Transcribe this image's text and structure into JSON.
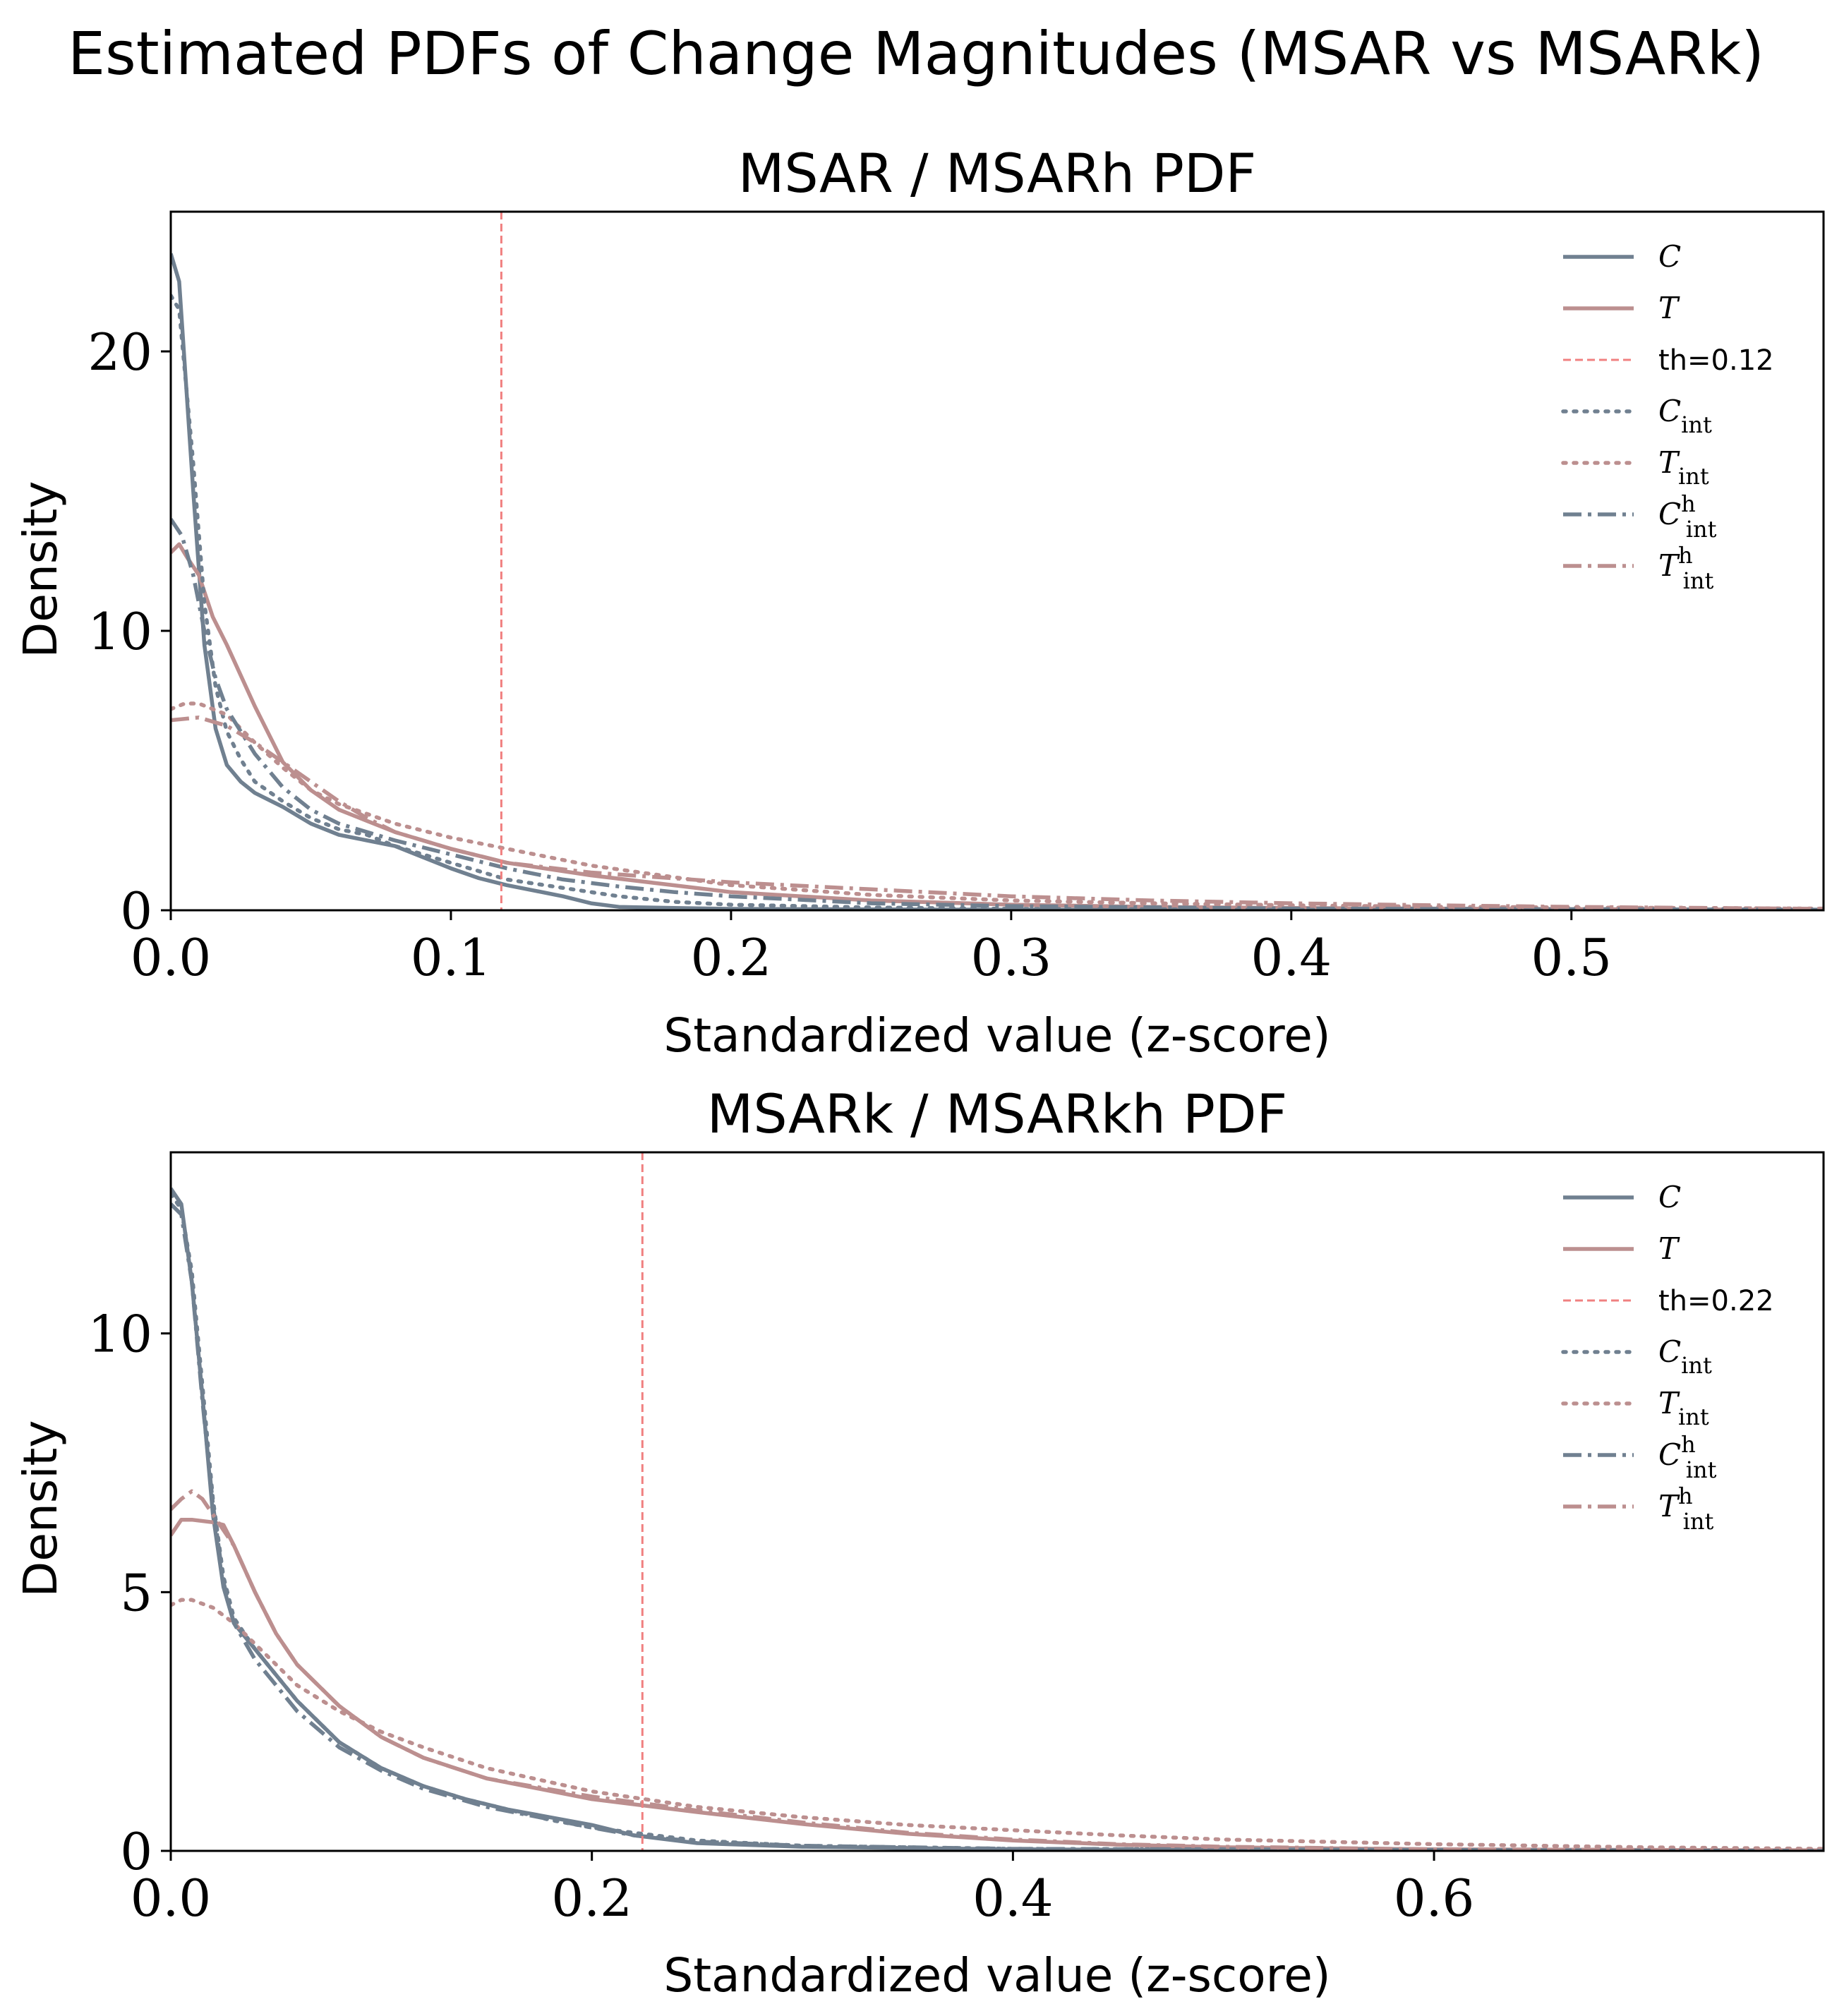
{
  "title": "Estimated PDFs of Change Magnitudes (MSAR vs MSARk)",
  "colors": {
    "control": "#708090",
    "treatment": "#bc8f8f",
    "threshold": "#f08080",
    "axis": "#000000"
  },
  "chart_data": [
    {
      "type": "line",
      "title": "MSAR / MSARh PDF",
      "xlabel": "Standardized value (z-score)",
      "ylabel": "Density",
      "xlim": [
        0,
        0.59
      ],
      "ylim": [
        0,
        25
      ],
      "xticks": [
        0.0,
        0.1,
        0.2,
        0.3,
        0.4,
        0.5
      ],
      "xtick_labels": [
        "0.0",
        "0.1",
        "0.2",
        "0.3",
        "0.4",
        "0.5"
      ],
      "yticks": [
        0,
        10,
        20
      ],
      "ytick_labels": [
        "0",
        "10",
        "20"
      ],
      "grid": false,
      "legend_position": "top-right",
      "threshold": {
        "x": 0.118,
        "label": "th=0.12"
      },
      "series": [
        {
          "name": "C",
          "sub": "",
          "sup": "",
          "color": "control",
          "style": "solid",
          "x": [
            0,
            0.003,
            0.008,
            0.012,
            0.016,
            0.02,
            0.025,
            0.03,
            0.04,
            0.05,
            0.06,
            0.07,
            0.08,
            0.09,
            0.1,
            0.11,
            0.12,
            0.13,
            0.14,
            0.15,
            0.16,
            0.18,
            0.2,
            0.25,
            0.3,
            0.4,
            0.5,
            0.59
          ],
          "y": [
            23.5,
            22.5,
            15.0,
            9.5,
            6.5,
            5.2,
            4.6,
            4.2,
            3.7,
            3.1,
            2.7,
            2.5,
            2.3,
            1.9,
            1.5,
            1.15,
            0.9,
            0.7,
            0.5,
            0.25,
            0.12,
            0.08,
            0.05,
            0.03,
            0.02,
            0.01,
            0.005,
            0.0
          ]
        },
        {
          "name": "T",
          "sub": "",
          "sup": "",
          "color": "treatment",
          "style": "solid",
          "x": [
            0,
            0.003,
            0.006,
            0.01,
            0.015,
            0.02,
            0.03,
            0.04,
            0.05,
            0.06,
            0.07,
            0.08,
            0.1,
            0.12,
            0.15,
            0.2,
            0.25,
            0.3,
            0.35,
            0.4,
            0.5,
            0.59
          ],
          "y": [
            12.8,
            13.1,
            12.6,
            12.0,
            10.5,
            9.5,
            7.3,
            5.3,
            4.3,
            3.6,
            3.2,
            2.8,
            2.2,
            1.7,
            1.25,
            0.65,
            0.35,
            0.2,
            0.12,
            0.08,
            0.04,
            0.02
          ]
        },
        {
          "name": "C",
          "sub": "int",
          "sup": "",
          "color": "control",
          "style": "dotted",
          "x": [
            0,
            0.003,
            0.008,
            0.012,
            0.016,
            0.02,
            0.025,
            0.03,
            0.04,
            0.05,
            0.06,
            0.07,
            0.08,
            0.1,
            0.12,
            0.14,
            0.16,
            0.18,
            0.2,
            0.25,
            0.3,
            0.4,
            0.59
          ],
          "y": [
            22.0,
            21.5,
            16.0,
            11.0,
            8.0,
            6.4,
            5.4,
            4.6,
            3.9,
            3.3,
            2.9,
            2.7,
            2.3,
            1.7,
            1.1,
            0.8,
            0.5,
            0.3,
            0.2,
            0.1,
            0.05,
            0.02,
            0.0
          ]
        },
        {
          "name": "T",
          "sub": "int",
          "sup": "",
          "color": "treatment",
          "style": "dotted",
          "x": [
            0,
            0.005,
            0.01,
            0.02,
            0.03,
            0.04,
            0.05,
            0.06,
            0.08,
            0.1,
            0.12,
            0.15,
            0.2,
            0.25,
            0.3,
            0.35,
            0.4,
            0.45,
            0.5,
            0.59
          ],
          "y": [
            7.2,
            7.4,
            7.4,
            7.0,
            6.0,
            5.1,
            4.3,
            3.8,
            3.1,
            2.6,
            2.2,
            1.6,
            0.9,
            0.55,
            0.35,
            0.25,
            0.18,
            0.13,
            0.1,
            0.06
          ]
        },
        {
          "name": "C",
          "sub": "int",
          "sup": "h",
          "color": "control",
          "style": "dashdot",
          "x": [
            0,
            0.004,
            0.008,
            0.012,
            0.016,
            0.02,
            0.025,
            0.03,
            0.04,
            0.05,
            0.06,
            0.08,
            0.1,
            0.12,
            0.14,
            0.16,
            0.18,
            0.2,
            0.25,
            0.3,
            0.4,
            0.59
          ],
          "y": [
            14.0,
            13.4,
            12.0,
            10.0,
            8.3,
            7.2,
            6.4,
            5.6,
            4.4,
            3.6,
            3.1,
            2.5,
            2.0,
            1.5,
            1.1,
            0.85,
            0.65,
            0.5,
            0.25,
            0.15,
            0.06,
            0.02
          ]
        },
        {
          "name": "T",
          "sub": "int",
          "sup": "h",
          "color": "treatment",
          "style": "dashdot",
          "x": [
            0,
            0.01,
            0.02,
            0.03,
            0.04,
            0.05,
            0.06,
            0.07,
            0.08,
            0.1,
            0.12,
            0.15,
            0.2,
            0.25,
            0.3,
            0.35,
            0.4,
            0.45,
            0.5,
            0.59
          ],
          "y": [
            6.8,
            6.9,
            6.6,
            6.0,
            5.3,
            4.6,
            3.9,
            3.3,
            2.8,
            2.2,
            1.7,
            1.35,
            1.0,
            0.75,
            0.5,
            0.35,
            0.25,
            0.18,
            0.12,
            0.05
          ]
        }
      ]
    },
    {
      "type": "line",
      "title": "MSARk / MSARkh PDF",
      "xlabel": "Standardized value (z-score)",
      "ylabel": "Density",
      "xlim": [
        0,
        0.785
      ],
      "ylim": [
        0,
        13.5
      ],
      "xticks": [
        0.0,
        0.2,
        0.4,
        0.6
      ],
      "xtick_labels": [
        "0.0",
        "0.2",
        "0.4",
        "0.6"
      ],
      "yticks": [
        0,
        5,
        10
      ],
      "ytick_labels": [
        "0",
        "5",
        "10"
      ],
      "grid": false,
      "legend_position": "top-right",
      "threshold": {
        "x": 0.224,
        "label": "th=0.22"
      },
      "series": [
        {
          "name": "C",
          "sub": "",
          "sup": "",
          "color": "control",
          "style": "solid",
          "x": [
            0,
            0.005,
            0.01,
            0.015,
            0.02,
            0.025,
            0.03,
            0.04,
            0.05,
            0.06,
            0.08,
            0.1,
            0.12,
            0.14,
            0.16,
            0.18,
            0.2,
            0.22,
            0.25,
            0.3,
            0.4,
            0.5,
            0.785
          ],
          "y": [
            12.8,
            12.5,
            11.0,
            8.8,
            6.5,
            5.1,
            4.4,
            3.9,
            3.4,
            2.9,
            2.1,
            1.6,
            1.25,
            1.0,
            0.8,
            0.65,
            0.5,
            0.3,
            0.15,
            0.08,
            0.03,
            0.015,
            0.0
          ]
        },
        {
          "name": "T",
          "sub": "",
          "sup": "",
          "color": "treatment",
          "style": "solid",
          "x": [
            0,
            0.005,
            0.01,
            0.02,
            0.025,
            0.03,
            0.04,
            0.05,
            0.06,
            0.08,
            0.1,
            0.12,
            0.15,
            0.2,
            0.25,
            0.3,
            0.35,
            0.4,
            0.45,
            0.5,
            0.6,
            0.785
          ],
          "y": [
            6.1,
            6.4,
            6.4,
            6.35,
            6.3,
            5.9,
            5.0,
            4.2,
            3.6,
            2.8,
            2.2,
            1.8,
            1.4,
            1.0,
            0.75,
            0.52,
            0.33,
            0.2,
            0.12,
            0.07,
            0.03,
            0.01
          ]
        },
        {
          "name": "C",
          "sub": "int",
          "sup": "",
          "color": "control",
          "style": "dotted",
          "x": [
            0,
            0.005,
            0.01,
            0.015,
            0.02,
            0.025,
            0.03,
            0.04,
            0.05,
            0.06,
            0.08,
            0.1,
            0.12,
            0.14,
            0.16,
            0.18,
            0.2,
            0.25,
            0.3,
            0.4,
            0.785
          ],
          "y": [
            12.7,
            12.4,
            11.2,
            9.0,
            6.8,
            5.3,
            4.5,
            3.9,
            3.4,
            2.9,
            2.1,
            1.6,
            1.25,
            1.0,
            0.8,
            0.6,
            0.45,
            0.2,
            0.1,
            0.04,
            0.0
          ]
        },
        {
          "name": "T",
          "sub": "int",
          "sup": "",
          "color": "treatment",
          "style": "dotted",
          "x": [
            0,
            0.005,
            0.01,
            0.02,
            0.03,
            0.04,
            0.05,
            0.06,
            0.08,
            0.1,
            0.12,
            0.15,
            0.2,
            0.25,
            0.3,
            0.35,
            0.4,
            0.45,
            0.5,
            0.6,
            0.7,
            0.785
          ],
          "y": [
            4.75,
            4.85,
            4.85,
            4.7,
            4.4,
            4.0,
            3.6,
            3.2,
            2.7,
            2.3,
            2.0,
            1.6,
            1.15,
            0.85,
            0.65,
            0.5,
            0.4,
            0.3,
            0.22,
            0.13,
            0.07,
            0.04
          ]
        },
        {
          "name": "C",
          "sub": "int",
          "sup": "h",
          "color": "control",
          "style": "dashdot",
          "x": [
            0,
            0.005,
            0.01,
            0.015,
            0.02,
            0.025,
            0.03,
            0.04,
            0.05,
            0.06,
            0.08,
            0.1,
            0.12,
            0.15,
            0.2,
            0.22,
            0.25,
            0.3,
            0.4,
            0.785
          ],
          "y": [
            12.5,
            12.3,
            11.0,
            8.7,
            6.7,
            5.2,
            4.4,
            3.7,
            3.2,
            2.7,
            2.0,
            1.55,
            1.2,
            0.85,
            0.45,
            0.3,
            0.18,
            0.1,
            0.04,
            0.0
          ]
        },
        {
          "name": "T",
          "sub": "int",
          "sup": "h",
          "color": "treatment",
          "style": "dashdot",
          "x": [
            0,
            0.005,
            0.01,
            0.015,
            0.02,
            0.03,
            0.04,
            0.05,
            0.06,
            0.08,
            0.1,
            0.12,
            0.15,
            0.2,
            0.25,
            0.3,
            0.35,
            0.4,
            0.45,
            0.5,
            0.6,
            0.785
          ],
          "y": [
            6.6,
            6.8,
            6.95,
            6.8,
            6.5,
            5.9,
            5.0,
            4.2,
            3.6,
            2.8,
            2.2,
            1.8,
            1.4,
            1.05,
            0.78,
            0.55,
            0.35,
            0.22,
            0.13,
            0.08,
            0.03,
            0.01
          ]
        }
      ]
    }
  ]
}
